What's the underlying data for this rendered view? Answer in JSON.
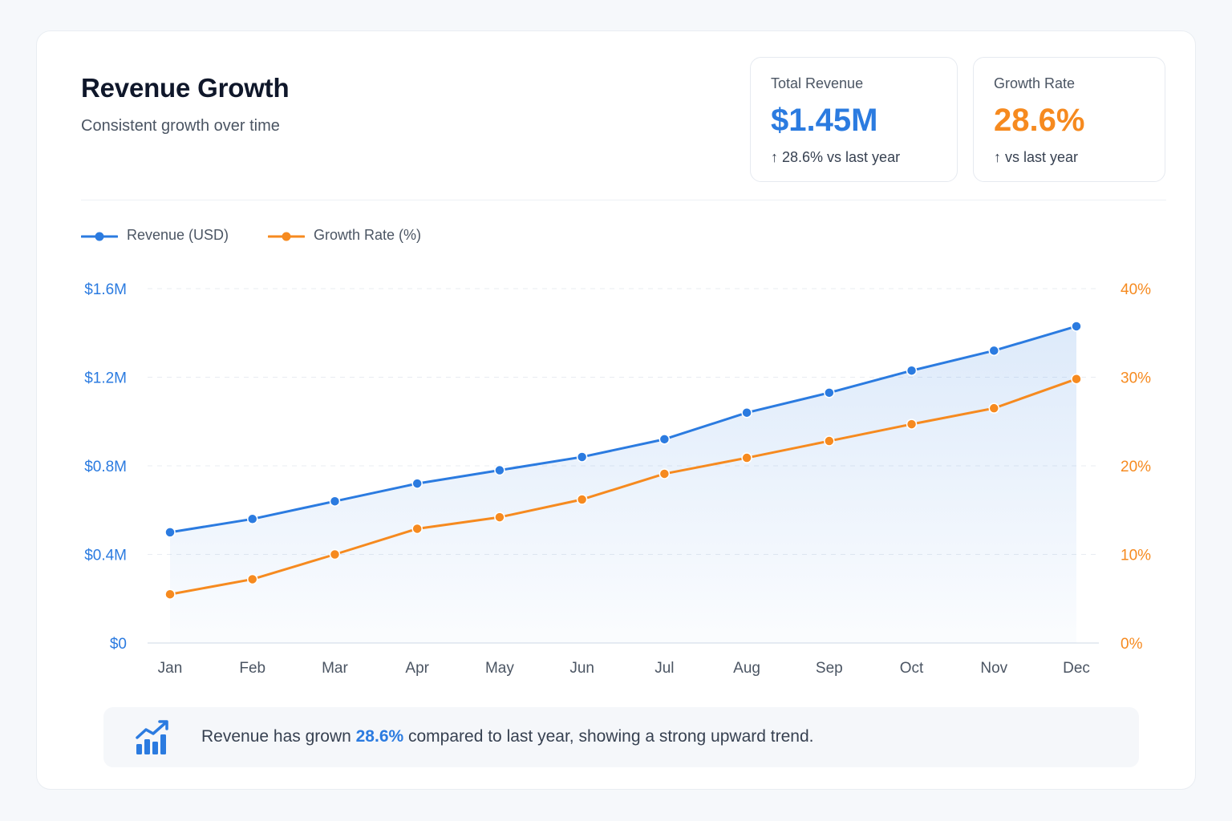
{
  "header": {
    "title": "Revenue Growth",
    "subtitle": "Consistent growth over time"
  },
  "stats": {
    "revenue": {
      "label": "Total Revenue",
      "value": "$1.45M",
      "note": "↑ 28.6% vs last year",
      "color": "#2b7be0"
    },
    "growth": {
      "label": "Growth Rate",
      "value": "28.6%",
      "note": "↑ vs last year",
      "color": "#f68a1f"
    }
  },
  "chart_data": {
    "type": "line",
    "categories": [
      "Jan",
      "Feb",
      "Mar",
      "Apr",
      "May",
      "Jun",
      "Jul",
      "Aug",
      "Sep",
      "Oct",
      "Nov",
      "Dec"
    ],
    "series": [
      {
        "name": "Revenue (USD)",
        "axis": "left",
        "color": "#2b7be0",
        "area_fill": true,
        "values": [
          0.5,
          0.56,
          0.64,
          0.72,
          0.78,
          0.84,
          0.92,
          1.04,
          1.13,
          1.23,
          1.32,
          1.43
        ]
      },
      {
        "name": "Growth Rate (%)",
        "axis": "right",
        "color": "#f68a1f",
        "area_fill": false,
        "values": [
          5.5,
          7.2,
          10.0,
          12.9,
          14.2,
          16.2,
          19.1,
          20.9,
          22.8,
          24.7,
          26.5,
          29.8
        ]
      }
    ],
    "y_left": {
      "ticks": [
        "$0",
        "$0.4M",
        "$0.8M",
        "$1.2M",
        "$1.6M"
      ],
      "tick_values": [
        0,
        0.4,
        0.8,
        1.2,
        1.6
      ],
      "range": [
        0,
        1.6
      ]
    },
    "y_right": {
      "ticks": [
        "0%",
        "10%",
        "20%",
        "30%",
        "40%"
      ],
      "tick_values": [
        0,
        10,
        20,
        30,
        40
      ],
      "range": [
        0,
        40
      ]
    },
    "grid": "horizontal-dashed",
    "legend_position": "top-left"
  },
  "insight": {
    "icon": "trending-chart-icon",
    "text_before": "Revenue has grown ",
    "highlight": "28.6%",
    "text_after": " compared to last year, showing a strong upward trend."
  }
}
